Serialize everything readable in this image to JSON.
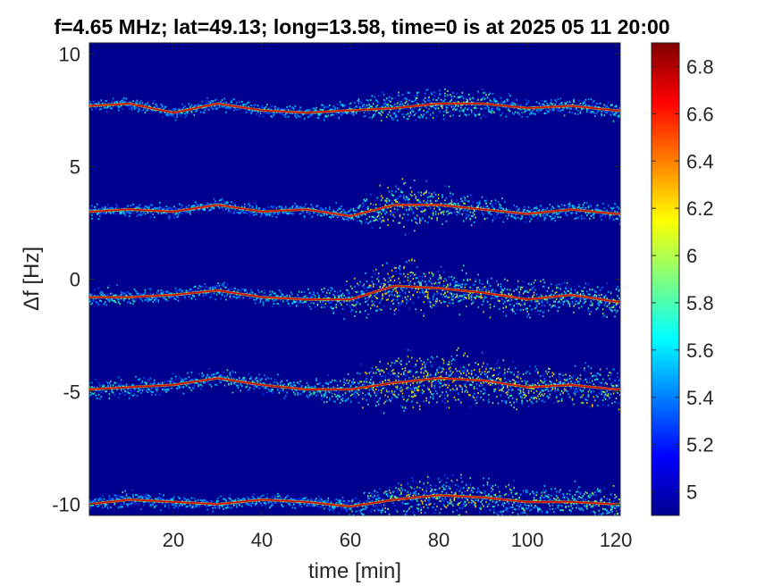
{
  "chart_data": {
    "type": "heatmap",
    "title": "f=4.65 MHz;  lat=49.13; long=13.58, time=0 is at 2025 05 11 20:00",
    "xlabel": "time [min]",
    "ylabel": "Δf [Hz]",
    "xlim": [
      1,
      121
    ],
    "ylim": [
      -10.5,
      10.5
    ],
    "xticks": [
      20,
      40,
      60,
      80,
      100,
      120
    ],
    "xtick_labels": [
      "20",
      "40",
      "60",
      "80",
      "100",
      "120"
    ],
    "yticks": [
      10,
      5,
      0,
      -5,
      -10
    ],
    "ytick_labels": [
      "10",
      "5",
      "0",
      "-5",
      "-10"
    ],
    "colorbar": {
      "range": [
        4.9,
        6.9
      ],
      "ticks": [
        6.8,
        6.6,
        6.4,
        6.2,
        6,
        5.8,
        5.6,
        5.4,
        5.2,
        5
      ],
      "tick_labels": [
        "6.8",
        "6.6",
        "6.4",
        "6.2",
        "6",
        "5.8",
        "5.6",
        "5.4",
        "5.2",
        "5"
      ],
      "colormap": "jet"
    },
    "background_color": "#00008f",
    "grid": false,
    "series": [
      {
        "name": "",
        "x": [
          1,
          10,
          20,
          30,
          40,
          50,
          60,
          70,
          80,
          90,
          100,
          110,
          120
        ],
        "y": [
          7.7,
          7.8,
          7.4,
          7.8,
          7.5,
          7.4,
          7.5,
          7.6,
          7.8,
          7.8,
          7.6,
          7.7,
          7.5
        ],
        "spread": [
          0.2,
          0.2,
          0.2,
          0.2,
          0.2,
          0.2,
          0.3,
          0.5,
          0.5,
          0.4,
          0.3,
          0.3,
          0.3
        ]
      },
      {
        "name": "",
        "x": [
          1,
          10,
          20,
          30,
          40,
          50,
          60,
          70,
          80,
          90,
          100,
          110,
          120
        ],
        "y": [
          3.0,
          3.1,
          3.0,
          3.3,
          3.0,
          3.1,
          2.8,
          3.3,
          3.3,
          3.1,
          2.9,
          3.1,
          2.9
        ],
        "spread": [
          0.2,
          0.2,
          0.2,
          0.2,
          0.2,
          0.2,
          0.3,
          0.8,
          0.6,
          0.4,
          0.3,
          0.3,
          0.3
        ]
      },
      {
        "name": "",
        "x": [
          1,
          10,
          20,
          30,
          40,
          50,
          60,
          70,
          80,
          90,
          100,
          110,
          120
        ],
        "y": [
          -0.8,
          -0.8,
          -0.7,
          -0.5,
          -0.8,
          -0.9,
          -0.9,
          -0.3,
          -0.4,
          -0.6,
          -0.9,
          -0.7,
          -1.0
        ],
        "spread": [
          0.3,
          0.3,
          0.2,
          0.3,
          0.2,
          0.3,
          0.5,
          0.9,
          0.7,
          0.6,
          0.6,
          0.5,
          0.5
        ]
      },
      {
        "name": "",
        "x": [
          1,
          10,
          20,
          30,
          40,
          50,
          60,
          70,
          80,
          90,
          100,
          110,
          120
        ],
        "y": [
          -4.9,
          -4.8,
          -4.7,
          -4.4,
          -4.7,
          -4.9,
          -4.9,
          -4.6,
          -4.4,
          -4.5,
          -4.8,
          -4.7,
          -4.9
        ],
        "spread": [
          0.3,
          0.3,
          0.3,
          0.3,
          0.3,
          0.3,
          0.5,
          0.9,
          0.9,
          0.8,
          0.7,
          0.6,
          0.6
        ]
      },
      {
        "name": "",
        "x": [
          1,
          10,
          20,
          30,
          40,
          50,
          60,
          70,
          80,
          90,
          100,
          110,
          120
        ],
        "y": [
          -10.0,
          -9.8,
          -9.9,
          -10.0,
          -9.8,
          -9.9,
          -10.1,
          -9.8,
          -9.6,
          -9.7,
          -9.9,
          -9.9,
          -10.0
        ],
        "spread": [
          0.2,
          0.3,
          0.2,
          0.2,
          0.2,
          0.2,
          0.3,
          0.6,
          0.7,
          0.6,
          0.5,
          0.5,
          0.5
        ]
      }
    ]
  }
}
